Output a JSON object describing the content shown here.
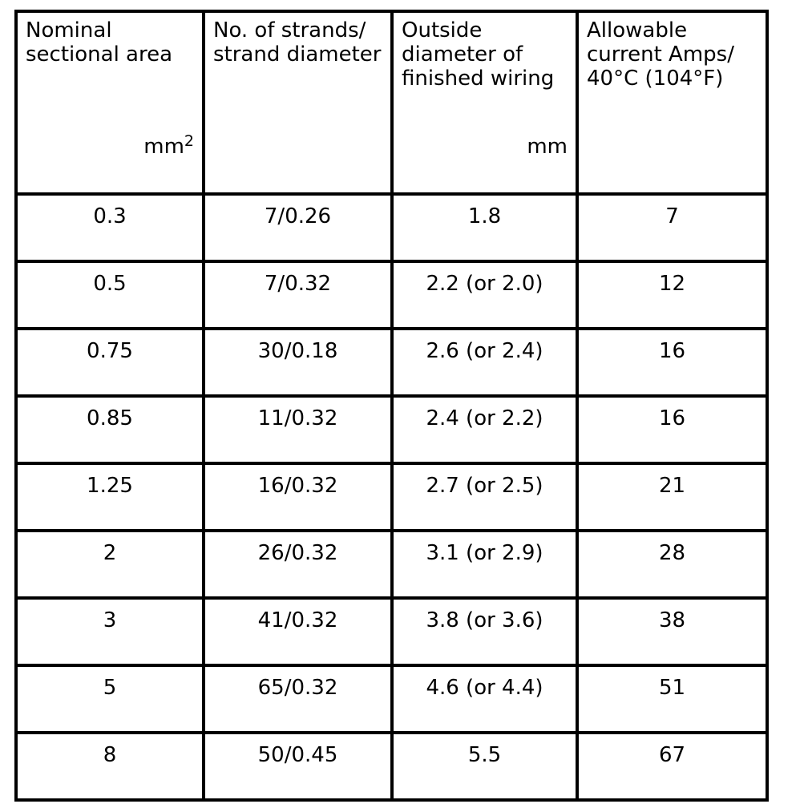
{
  "table": {
    "colors": {
      "border": "#000000",
      "text": "#000000",
      "background": "#ffffff"
    },
    "headers": [
      {
        "title": "Nominal\nsectional area",
        "unit": "mm",
        "unit_sup": "2"
      },
      {
        "title": "No. of strands/\nstrand diameter"
      },
      {
        "title": "Outside\ndiameter of\nfinished wiring",
        "unit": "mm"
      },
      {
        "title": "Allowable\ncurrent Amps/\n40°C (104°F)"
      }
    ],
    "rows": [
      [
        "0.3",
        "7/0.26",
        "1.8",
        "7"
      ],
      [
        "0.5",
        "7/0.32",
        "2.2 (or 2.0)",
        "12"
      ],
      [
        "0.75",
        "30/0.18",
        "2.6 (or 2.4)",
        "16"
      ],
      [
        "0.85",
        "11/0.32",
        "2.4 (or 2.2)",
        "16"
      ],
      [
        "1.25",
        "16/0.32",
        "2.7 (or 2.5)",
        "21"
      ],
      [
        "2",
        "26/0.32",
        "3.1 (or 2.9)",
        "28"
      ],
      [
        "3",
        "41/0.32",
        "3.8 (or 3.6)",
        "38"
      ],
      [
        "5",
        "65/0.32",
        "4.6 (or 4.4)",
        "51"
      ],
      [
        "8",
        "50/0.45",
        "5.5",
        "67"
      ]
    ]
  }
}
